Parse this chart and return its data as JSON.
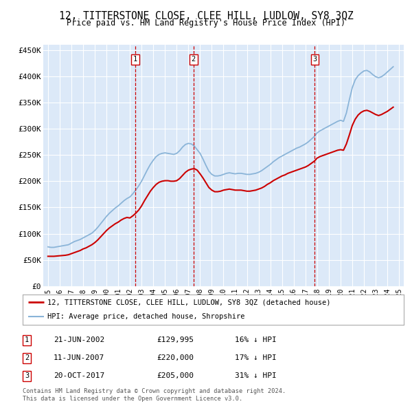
{
  "title": "12, TITTERSTONE CLOSE, CLEE HILL, LUDLOW, SY8 3QZ",
  "subtitle": "Price paid vs. HM Land Registry's House Price Index (HPI)",
  "ylim": [
    0,
    460000
  ],
  "yticks": [
    0,
    50000,
    100000,
    150000,
    200000,
    250000,
    300000,
    350000,
    400000,
    450000
  ],
  "ytick_labels": [
    "£0",
    "£50K",
    "£100K",
    "£150K",
    "£200K",
    "£250K",
    "£300K",
    "£350K",
    "£400K",
    "£450K"
  ],
  "xlim_start": 1994.6,
  "xlim_end": 2025.4,
  "bg_color": "#dce9f8",
  "grid_color": "#ffffff",
  "red_color": "#cc0000",
  "blue_color": "#8ab4d8",
  "transactions": [
    {
      "num": 1,
      "date": "21-JUN-2002",
      "price": "£129,995",
      "pct": "16% ↓ HPI",
      "year": 2002.47
    },
    {
      "num": 2,
      "date": "11-JUN-2007",
      "price": "£220,000",
      "pct": "17% ↓ HPI",
      "year": 2007.44
    },
    {
      "num": 3,
      "date": "20-OCT-2017",
      "price": "£205,000",
      "pct": "31% ↓ HPI",
      "year": 2017.8
    }
  ],
  "legend_line1": "12, TITTERSTONE CLOSE, CLEE HILL, LUDLOW, SY8 3QZ (detached house)",
  "legend_line2": "HPI: Average price, detached house, Shropshire",
  "footer1": "Contains HM Land Registry data © Crown copyright and database right 2024.",
  "footer2": "This data is licensed under the Open Government Licence v3.0.",
  "hpi_years": [
    1995.0,
    1995.25,
    1995.5,
    1995.75,
    1996.0,
    1996.25,
    1996.5,
    1996.75,
    1997.0,
    1997.25,
    1997.5,
    1997.75,
    1998.0,
    1998.25,
    1998.5,
    1998.75,
    1999.0,
    1999.25,
    1999.5,
    1999.75,
    2000.0,
    2000.25,
    2000.5,
    2000.75,
    2001.0,
    2001.25,
    2001.5,
    2001.75,
    2002.0,
    2002.25,
    2002.5,
    2002.75,
    2003.0,
    2003.25,
    2003.5,
    2003.75,
    2004.0,
    2004.25,
    2004.5,
    2004.75,
    2005.0,
    2005.25,
    2005.5,
    2005.75,
    2006.0,
    2006.25,
    2006.5,
    2006.75,
    2007.0,
    2007.25,
    2007.5,
    2007.75,
    2008.0,
    2008.25,
    2008.5,
    2008.75,
    2009.0,
    2009.25,
    2009.5,
    2009.75,
    2010.0,
    2010.25,
    2010.5,
    2010.75,
    2011.0,
    2011.25,
    2011.5,
    2011.75,
    2012.0,
    2012.25,
    2012.5,
    2012.75,
    2013.0,
    2013.25,
    2013.5,
    2013.75,
    2014.0,
    2014.25,
    2014.5,
    2014.75,
    2015.0,
    2015.25,
    2015.5,
    2015.75,
    2016.0,
    2016.25,
    2016.5,
    2016.75,
    2017.0,
    2017.25,
    2017.5,
    2017.75,
    2018.0,
    2018.25,
    2018.5,
    2018.75,
    2019.0,
    2019.25,
    2019.5,
    2019.75,
    2020.0,
    2020.25,
    2020.5,
    2020.75,
    2021.0,
    2021.25,
    2021.5,
    2021.75,
    2022.0,
    2022.25,
    2022.5,
    2022.75,
    2023.0,
    2023.25,
    2023.5,
    2023.75,
    2024.0,
    2024.25,
    2024.5
  ],
  "hpi_values": [
    75000,
    74000,
    74000,
    75000,
    76000,
    77000,
    78000,
    79000,
    82000,
    85000,
    87000,
    89000,
    92000,
    95000,
    98000,
    101000,
    106000,
    112000,
    119000,
    126000,
    133000,
    139000,
    144000,
    149000,
    153000,
    158000,
    163000,
    167000,
    170000,
    176000,
    183000,
    191000,
    200000,
    211000,
    222000,
    232000,
    240000,
    247000,
    251000,
    253000,
    254000,
    253000,
    252000,
    251000,
    253000,
    258000,
    265000,
    270000,
    272000,
    271000,
    267000,
    260000,
    253000,
    242000,
    230000,
    219000,
    213000,
    210000,
    210000,
    211000,
    213000,
    215000,
    216000,
    215000,
    214000,
    215000,
    215000,
    214000,
    213000,
    213000,
    214000,
    215000,
    217000,
    220000,
    224000,
    228000,
    232000,
    237000,
    241000,
    245000,
    248000,
    251000,
    254000,
    257000,
    260000,
    263000,
    265000,
    268000,
    271000,
    275000,
    280000,
    285000,
    292000,
    296000,
    299000,
    302000,
    305000,
    308000,
    311000,
    314000,
    316000,
    314000,
    330000,
    355000,
    378000,
    393000,
    401000,
    406000,
    410000,
    411000,
    408000,
    403000,
    399000,
    397000,
    399000,
    403000,
    408000,
    413000,
    418000
  ],
  "red_years": [
    1995.0,
    1995.25,
    1995.5,
    1995.75,
    1996.0,
    1996.25,
    1996.5,
    1996.75,
    1997.0,
    1997.25,
    1997.5,
    1997.75,
    1998.0,
    1998.25,
    1998.5,
    1998.75,
    1999.0,
    1999.25,
    1999.5,
    1999.75,
    2000.0,
    2000.25,
    2000.5,
    2000.75,
    2001.0,
    2001.25,
    2001.5,
    2001.75,
    2002.0,
    2002.25,
    2002.5,
    2002.75,
    2003.0,
    2003.25,
    2003.5,
    2003.75,
    2004.0,
    2004.25,
    2004.5,
    2004.75,
    2005.0,
    2005.25,
    2005.5,
    2005.75,
    2006.0,
    2006.25,
    2006.5,
    2006.75,
    2007.0,
    2007.25,
    2007.5,
    2007.75,
    2008.0,
    2008.25,
    2008.5,
    2008.75,
    2009.0,
    2009.25,
    2009.5,
    2009.75,
    2010.0,
    2010.25,
    2010.5,
    2010.75,
    2011.0,
    2011.25,
    2011.5,
    2011.75,
    2012.0,
    2012.25,
    2012.5,
    2012.75,
    2013.0,
    2013.25,
    2013.5,
    2013.75,
    2014.0,
    2014.25,
    2014.5,
    2014.75,
    2015.0,
    2015.25,
    2015.5,
    2015.75,
    2016.0,
    2016.25,
    2016.5,
    2016.75,
    2017.0,
    2017.25,
    2017.5,
    2017.75,
    2018.0,
    2018.25,
    2018.5,
    2018.75,
    2019.0,
    2019.25,
    2019.5,
    2019.75,
    2020.0,
    2020.25,
    2020.5,
    2020.75,
    2021.0,
    2021.25,
    2021.5,
    2021.75,
    2022.0,
    2022.25,
    2022.5,
    2022.75,
    2023.0,
    2023.25,
    2023.5,
    2023.75,
    2024.0,
    2024.25,
    2024.5
  ],
  "red_values": [
    57000,
    57000,
    57000,
    57500,
    58000,
    58500,
    59000,
    60000,
    62000,
    64000,
    66000,
    68000,
    71000,
    73000,
    76000,
    79000,
    83000,
    88000,
    94000,
    100000,
    106000,
    111000,
    115000,
    119000,
    122000,
    126000,
    129000,
    131000,
    130000,
    134000,
    139000,
    145000,
    153000,
    163000,
    172000,
    181000,
    188000,
    194000,
    198000,
    200000,
    201000,
    201000,
    200000,
    200000,
    201000,
    205000,
    211000,
    217000,
    221000,
    223000,
    224000,
    221000,
    214000,
    206000,
    197000,
    188000,
    183000,
    180000,
    180000,
    181000,
    183000,
    184000,
    185000,
    184000,
    183000,
    183000,
    183000,
    182000,
    181000,
    181000,
    182000,
    183000,
    185000,
    187000,
    190000,
    194000,
    197000,
    201000,
    204000,
    207000,
    210000,
    212000,
    215000,
    217000,
    219000,
    221000,
    223000,
    225000,
    227000,
    230000,
    234000,
    238000,
    244000,
    247000,
    249000,
    251000,
    253000,
    255000,
    257000,
    259000,
    260000,
    259000,
    271000,
    288000,
    306000,
    318000,
    326000,
    331000,
    334000,
    335000,
    333000,
    330000,
    327000,
    325000,
    327000,
    330000,
    333000,
    337000,
    341000
  ]
}
